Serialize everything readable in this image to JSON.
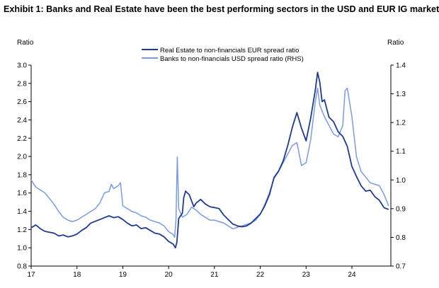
{
  "title": "Exhibit 1: Banks and Real Estate have been the best performing sectors in the USD and EUR IG market",
  "chart_data": {
    "type": "line",
    "left_axis": {
      "title": "Ratio",
      "min": 0.8,
      "max": 3.0,
      "ticks": [
        "0.8",
        "1.0",
        "1.2",
        "1.4",
        "1.6",
        "1.8",
        "2.0",
        "2.2",
        "2.4",
        "2.6",
        "2.8",
        "3.0"
      ]
    },
    "right_axis": {
      "title": "Ratio",
      "min": 0.7,
      "max": 1.4,
      "ticks": [
        "0.7",
        "0.8",
        "0.9",
        "1.0",
        "1.1",
        "1.2",
        "1.3",
        "1.4"
      ]
    },
    "x_axis": {
      "min": 17,
      "max": 24.85,
      "ticks": [
        "17",
        "18",
        "19",
        "20",
        "21",
        "22",
        "23",
        "24"
      ]
    },
    "legend": {
      "placement": "top-center"
    },
    "series": [
      {
        "name": "Real Estate to non-financials EUR spread ratio",
        "axis": "left",
        "color": "#1f3a93",
        "points": [
          [
            17.0,
            1.22
          ],
          [
            17.1,
            1.25
          ],
          [
            17.2,
            1.21
          ],
          [
            17.3,
            1.18
          ],
          [
            17.4,
            1.17
          ],
          [
            17.5,
            1.16
          ],
          [
            17.6,
            1.13
          ],
          [
            17.7,
            1.14
          ],
          [
            17.8,
            1.12
          ],
          [
            17.9,
            1.13
          ],
          [
            18.0,
            1.15
          ],
          [
            18.1,
            1.19
          ],
          [
            18.2,
            1.22
          ],
          [
            18.3,
            1.27
          ],
          [
            18.4,
            1.29
          ],
          [
            18.5,
            1.31
          ],
          [
            18.6,
            1.33
          ],
          [
            18.7,
            1.35
          ],
          [
            18.8,
            1.33
          ],
          [
            18.9,
            1.34
          ],
          [
            19.0,
            1.31
          ],
          [
            19.1,
            1.27
          ],
          [
            19.2,
            1.24
          ],
          [
            19.3,
            1.25
          ],
          [
            19.4,
            1.21
          ],
          [
            19.5,
            1.22
          ],
          [
            19.6,
            1.19
          ],
          [
            19.7,
            1.16
          ],
          [
            19.8,
            1.15
          ],
          [
            19.9,
            1.12
          ],
          [
            20.0,
            1.07
          ],
          [
            20.1,
            1.04
          ],
          [
            20.15,
            1.0
          ],
          [
            20.18,
            1.06
          ],
          [
            20.22,
            1.32
          ],
          [
            20.26,
            1.35
          ],
          [
            20.3,
            1.38
          ],
          [
            20.33,
            1.55
          ],
          [
            20.37,
            1.62
          ],
          [
            20.45,
            1.58
          ],
          [
            20.55,
            1.45
          ],
          [
            20.6,
            1.49
          ],
          [
            20.7,
            1.53
          ],
          [
            20.8,
            1.48
          ],
          [
            20.9,
            1.45
          ],
          [
            21.0,
            1.44
          ],
          [
            21.1,
            1.43
          ],
          [
            21.2,
            1.36
          ],
          [
            21.3,
            1.31
          ],
          [
            21.4,
            1.26
          ],
          [
            21.5,
            1.24
          ],
          [
            21.6,
            1.23
          ],
          [
            21.7,
            1.24
          ],
          [
            21.8,
            1.27
          ],
          [
            21.9,
            1.32
          ],
          [
            22.0,
            1.37
          ],
          [
            22.1,
            1.46
          ],
          [
            22.2,
            1.58
          ],
          [
            22.3,
            1.77
          ],
          [
            22.4,
            1.84
          ],
          [
            22.5,
            1.95
          ],
          [
            22.6,
            2.12
          ],
          [
            22.7,
            2.32
          ],
          [
            22.8,
            2.48
          ],
          [
            22.9,
            2.31
          ],
          [
            23.0,
            2.17
          ],
          [
            23.1,
            2.42
          ],
          [
            23.2,
            2.72
          ],
          [
            23.25,
            2.92
          ],
          [
            23.3,
            2.81
          ],
          [
            23.35,
            2.6
          ],
          [
            23.4,
            2.62
          ],
          [
            23.5,
            2.43
          ],
          [
            23.6,
            2.38
          ],
          [
            23.7,
            2.27
          ],
          [
            23.8,
            2.22
          ],
          [
            23.9,
            2.11
          ],
          [
            24.0,
            1.89
          ],
          [
            24.1,
            1.78
          ],
          [
            24.2,
            1.68
          ],
          [
            24.3,
            1.62
          ],
          [
            24.4,
            1.63
          ],
          [
            24.5,
            1.56
          ],
          [
            24.6,
            1.52
          ],
          [
            24.7,
            1.44
          ],
          [
            24.8,
            1.42
          ]
        ]
      },
      {
        "name": "Banks to non-financials USD spread ratio (RHS)",
        "axis": "right",
        "color": "#7a9ae8",
        "points": [
          [
            17.0,
            1.0
          ],
          [
            17.1,
            0.975
          ],
          [
            17.2,
            0.965
          ],
          [
            17.3,
            0.955
          ],
          [
            17.4,
            0.935
          ],
          [
            17.5,
            0.915
          ],
          [
            17.6,
            0.89
          ],
          [
            17.7,
            0.87
          ],
          [
            17.8,
            0.86
          ],
          [
            17.9,
            0.855
          ],
          [
            18.0,
            0.86
          ],
          [
            18.1,
            0.87
          ],
          [
            18.2,
            0.88
          ],
          [
            18.3,
            0.89
          ],
          [
            18.4,
            0.9
          ],
          [
            18.5,
            0.92
          ],
          [
            18.6,
            0.955
          ],
          [
            18.7,
            0.96
          ],
          [
            18.75,
            0.985
          ],
          [
            18.8,
            0.97
          ],
          [
            18.9,
            0.98
          ],
          [
            18.95,
            0.99
          ],
          [
            19.0,
            0.91
          ],
          [
            19.1,
            0.9
          ],
          [
            19.2,
            0.89
          ],
          [
            19.3,
            0.885
          ],
          [
            19.4,
            0.875
          ],
          [
            19.5,
            0.87
          ],
          [
            19.6,
            0.86
          ],
          [
            19.7,
            0.855
          ],
          [
            19.8,
            0.85
          ],
          [
            19.9,
            0.84
          ],
          [
            20.0,
            0.82
          ],
          [
            20.1,
            0.81
          ],
          [
            20.13,
            0.8
          ],
          [
            20.16,
            0.86
          ],
          [
            20.19,
            1.08
          ],
          [
            20.22,
            0.9
          ],
          [
            20.3,
            0.87
          ],
          [
            20.4,
            0.88
          ],
          [
            20.5,
            0.905
          ],
          [
            20.6,
            0.895
          ],
          [
            20.7,
            0.88
          ],
          [
            20.8,
            0.87
          ],
          [
            20.9,
            0.86
          ],
          [
            21.0,
            0.86
          ],
          [
            21.1,
            0.855
          ],
          [
            21.2,
            0.85
          ],
          [
            21.3,
            0.84
          ],
          [
            21.4,
            0.83
          ],
          [
            21.5,
            0.835
          ],
          [
            21.6,
            0.84
          ],
          [
            21.7,
            0.845
          ],
          [
            21.8,
            0.85
          ],
          [
            21.9,
            0.86
          ],
          [
            22.0,
            0.88
          ],
          [
            22.1,
            0.915
          ],
          [
            22.2,
            0.955
          ],
          [
            22.3,
            1.005
          ],
          [
            22.4,
            1.03
          ],
          [
            22.5,
            1.06
          ],
          [
            22.6,
            1.09
          ],
          [
            22.7,
            1.12
          ],
          [
            22.8,
            1.13
          ],
          [
            22.9,
            1.05
          ],
          [
            23.0,
            1.06
          ],
          [
            23.1,
            1.14
          ],
          [
            23.2,
            1.27
          ],
          [
            23.25,
            1.32
          ],
          [
            23.3,
            1.26
          ],
          [
            23.4,
            1.22
          ],
          [
            23.5,
            1.19
          ],
          [
            23.6,
            1.16
          ],
          [
            23.7,
            1.15
          ],
          [
            23.8,
            1.19
          ],
          [
            23.85,
            1.31
          ],
          [
            23.9,
            1.32
          ],
          [
            24.0,
            1.22
          ],
          [
            24.1,
            1.08
          ],
          [
            24.2,
            1.03
          ],
          [
            24.3,
            1.01
          ],
          [
            24.4,
            0.99
          ],
          [
            24.5,
            0.985
          ],
          [
            24.6,
            0.98
          ],
          [
            24.7,
            0.95
          ],
          [
            24.8,
            0.91
          ]
        ]
      }
    ]
  }
}
